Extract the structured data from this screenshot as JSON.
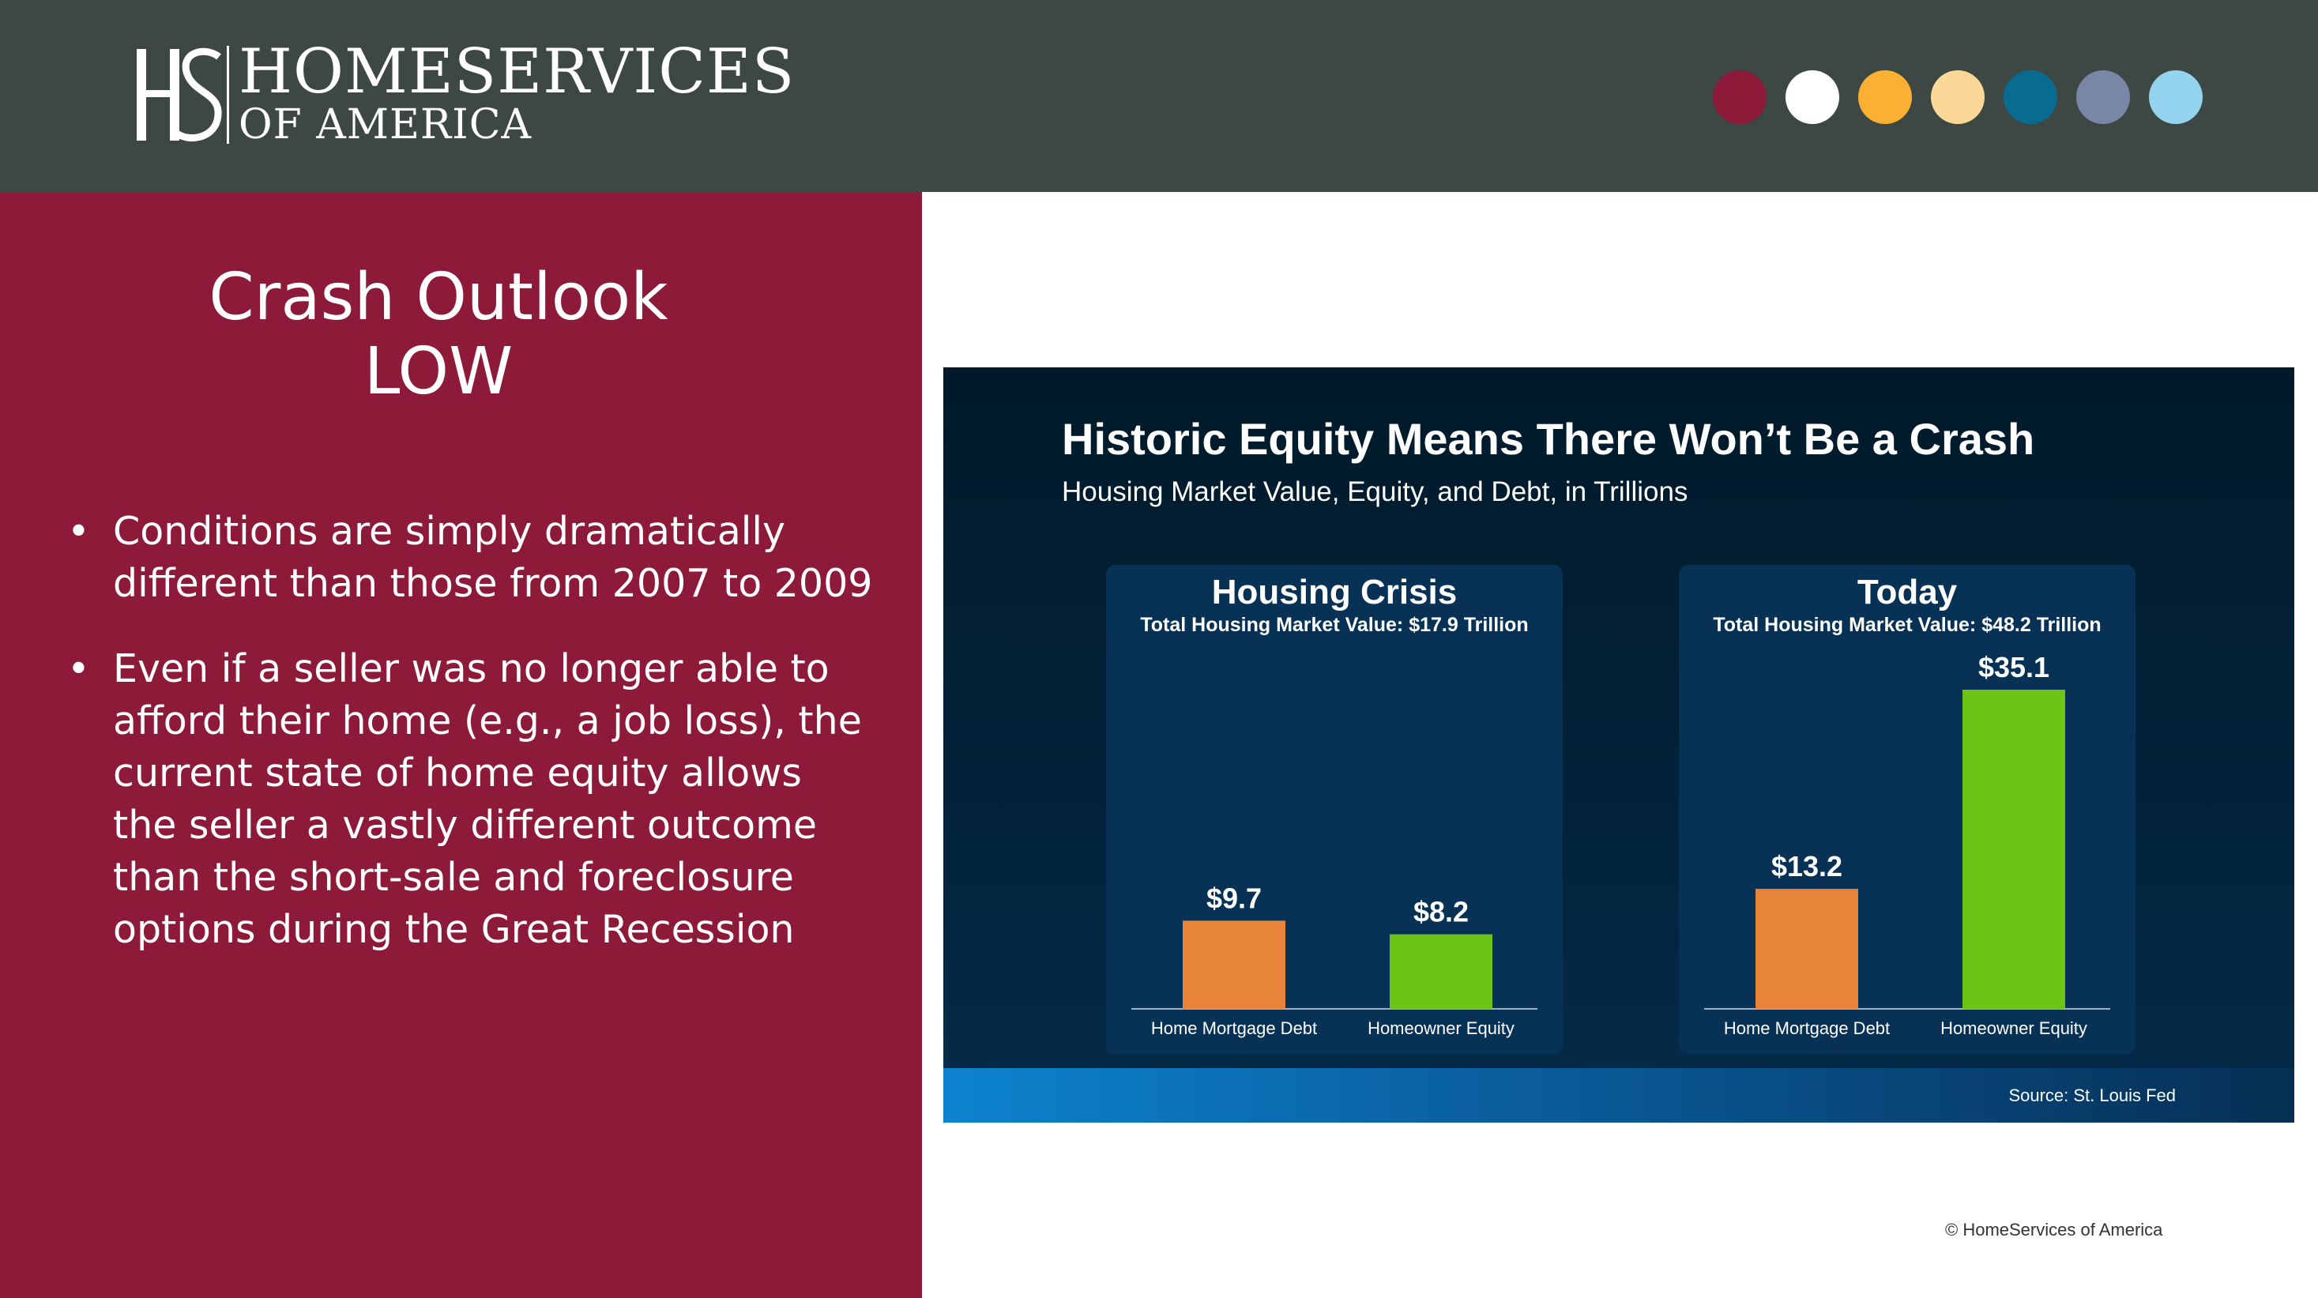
{
  "header": {
    "logo_line1": "HOMESERVICES",
    "logo_line2": "OF AMERICA",
    "logo_mark": "HS",
    "palette": [
      "#8c1a38",
      "#ffffff",
      "#fbb034",
      "#fcd898",
      "#0a6b91",
      "#7a86a5",
      "#93d3ee"
    ]
  },
  "sidebar": {
    "title_line1": "Crash Outlook",
    "title_line2": "LOW",
    "bullets": [
      "Conditions are simply dramatically different than those from 2007 to 2009",
      "Even if a seller was no longer able to afford their home (e.g., a job loss), the current state of home equity allows the seller a vastly different outcome than the short-sale and foreclosure options during the Great Recession"
    ],
    "bullet_symbol": "•"
  },
  "chart_data": {
    "type": "bar",
    "title": "Historic Equity Means There Won’t Be a Crash",
    "subtitle": "Housing Market Value, Equity, and Debt, in Trillions",
    "source": "Source: St. Louis Fed",
    "categories": [
      "Home Mortgage Debt",
      "Homeowner Equity"
    ],
    "colors": [
      "#e8833a",
      "#6cc417"
    ],
    "panels": [
      {
        "title": "Housing Crisis",
        "subtitle": "Total Housing Market Value: $17.9 Trillion",
        "values": [
          9.7,
          8.2
        ],
        "labels": [
          "$9.7",
          "$8.2"
        ]
      },
      {
        "title": "Today",
        "subtitle": "Total Housing Market Value: $48.2 Trillion",
        "values": [
          13.2,
          35.1
        ],
        "labels": [
          "$13.2",
          "$35.1"
        ]
      }
    ],
    "ylim": [
      0,
      35.1
    ]
  },
  "footer": {
    "copyright": "© HomeServices of America"
  }
}
